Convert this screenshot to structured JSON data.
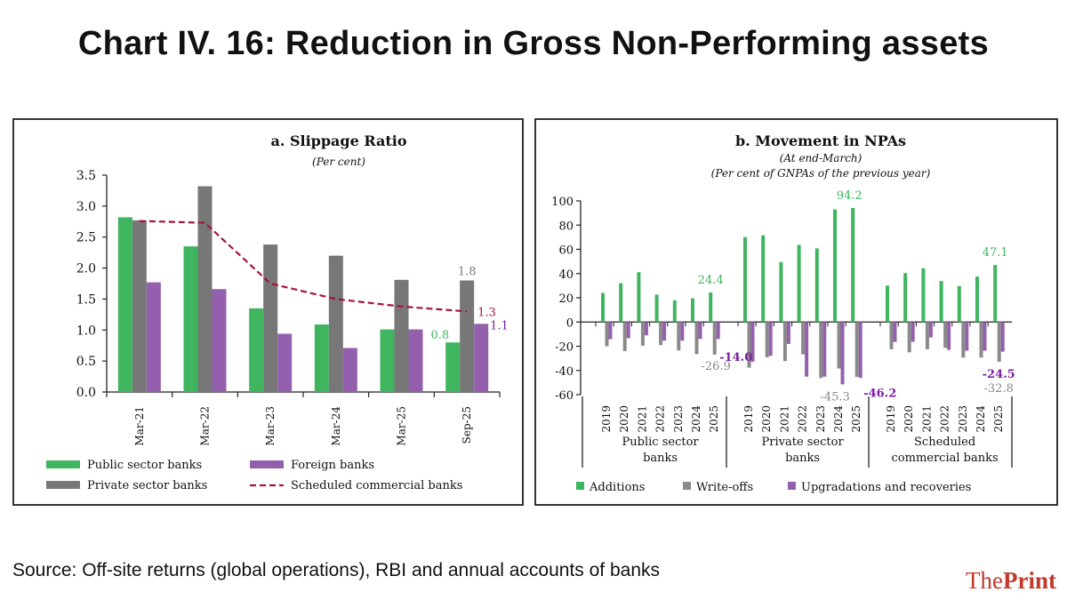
{
  "header": {
    "title": "Chart IV. 16: Reduction in Gross Non-Performing assets"
  },
  "footer": {
    "source": "Source: Off-site returns (global operations), RBI and annual accounts of banks",
    "brand_regular": "The",
    "brand_bold": "Print"
  },
  "colors": {
    "public": "#3fb55f",
    "private": "#777778",
    "foreign": "#9460ad",
    "scb_line": "#a3163a",
    "additions": "#3fb55f",
    "writeoffs": "#8a8a8a",
    "upgradations": "#9460ad",
    "label_purple": "#7b1fa2"
  },
  "chart_data": [
    {
      "type": "bar",
      "title": "a. Slippage Ratio",
      "subtitle": "(Per cent)",
      "xlabel": "",
      "ylabel": "",
      "ylim": [
        0,
        3.5
      ],
      "yticks": [
        "0.0",
        "0.5",
        "1.0",
        "1.5",
        "2.0",
        "2.5",
        "3.0",
        "3.5"
      ],
      "ytick_values": [
        0,
        0.5,
        1.0,
        1.5,
        2.0,
        2.5,
        3.0,
        3.5
      ],
      "categories": [
        "Mar-21",
        "Mar-22",
        "Mar-23",
        "Mar-24",
        "Mar-25",
        "Sep-25"
      ],
      "series": [
        {
          "name": "Public sector banks",
          "kind": "bar",
          "color_key": "public",
          "values": [
            2.82,
            2.35,
            1.35,
            1.09,
            1.01,
            0.8
          ]
        },
        {
          "name": "Private sector banks",
          "kind": "bar",
          "color_key": "private",
          "values": [
            2.77,
            3.32,
            2.38,
            2.2,
            1.81,
            1.8
          ]
        },
        {
          "name": "Foreign banks",
          "kind": "bar",
          "color_key": "foreign",
          "values": [
            1.77,
            1.66,
            0.94,
            0.71,
            1.01,
            1.1
          ]
        },
        {
          "name": "Scheduled commercial banks",
          "kind": "line-dashed",
          "color_key": "scb_line",
          "values": [
            2.76,
            2.73,
            1.75,
            1.5,
            1.38,
            1.3
          ]
        }
      ],
      "annotations": [
        {
          "text": "0.8",
          "series": "Public sector banks",
          "category": "Sep-25"
        },
        {
          "text": "1.8",
          "series": "Private sector banks",
          "category": "Sep-25"
        },
        {
          "text": "1.1",
          "series": "Foreign banks",
          "category": "Sep-25"
        },
        {
          "text": "1.3",
          "series": "Scheduled commercial banks",
          "category": "Sep-25"
        }
      ],
      "legend": {
        "placement": "bottom",
        "items": [
          "Public sector banks",
          "Foreign banks",
          "Private sector banks",
          "Scheduled commercial banks"
        ]
      },
      "grid": false
    },
    {
      "type": "bar",
      "title": "b. Movement in NPAs",
      "subtitle": "(At end-March)",
      "subtitle2": "(Per cent of GNPAs of the previous year)",
      "xlabel": "",
      "ylabel": "",
      "ylim": [
        -60,
        100
      ],
      "yticks": [
        "-60",
        "-40",
        "-20",
        "0",
        "20",
        "40",
        "60",
        "80",
        "100"
      ],
      "ytick_values": [
        -60,
        -40,
        -20,
        0,
        20,
        40,
        60,
        80,
        100
      ],
      "groups": [
        {
          "label_line1": "Public sector",
          "label_line2": "banks",
          "years": [
            "2019",
            "2020",
            "2021",
            "2022",
            "2023",
            "2024",
            "2025"
          ],
          "additions": [
            24.0,
            32.1,
            41.1,
            22.6,
            17.9,
            19.6,
            24.4
          ],
          "writeoffs": [
            -20.0,
            -24.0,
            -19.6,
            -19.1,
            -23.5,
            -26.5,
            -26.9
          ],
          "upgradations": [
            -14.2,
            -13.4,
            -11.0,
            -15.4,
            -15.4,
            -14.0,
            -14.0
          ]
        },
        {
          "label_line1": "Private sector",
          "label_line2": "banks",
          "years": [
            "2019",
            "2020",
            "2021",
            "2022",
            "2023",
            "2024",
            "2025"
          ],
          "additions": [
            70.1,
            71.6,
            49.5,
            63.7,
            60.8,
            93.0,
            94.2
          ],
          "writeoffs": [
            -37.7,
            -29.1,
            -32.3,
            -26.7,
            -46.3,
            -38.4,
            -45.3
          ],
          "upgradations": [
            -32.8,
            -27.9,
            -18.1,
            -45.1,
            -45.1,
            -51.5,
            -46.2
          ]
        },
        {
          "label_line1": "Scheduled",
          "label_line2": "commercial banks",
          "years": [
            "2019",
            "2020",
            "2021",
            "2022",
            "2023",
            "2024",
            "2025"
          ],
          "additions": [
            30.1,
            40.4,
            44.4,
            33.8,
            29.7,
            37.5,
            47.1
          ],
          "writeoffs": [
            -22.5,
            -25.0,
            -22.5,
            -21.3,
            -29.4,
            -29.4,
            -32.8
          ],
          "upgradations": [
            -16.4,
            -16.4,
            -12.7,
            -23.0,
            -23.7,
            -23.7,
            -24.5
          ]
        }
      ],
      "annotations": [
        {
          "text": "24.4",
          "group": 0,
          "series": "additions"
        },
        {
          "text": "-14.0",
          "group": 0,
          "series": "upgradations"
        },
        {
          "text": "-26.9",
          "group": 0,
          "series": "writeoffs"
        },
        {
          "text": "94.2",
          "group": 1,
          "series": "additions"
        },
        {
          "text": "-45.3",
          "group": 1,
          "series": "writeoffs"
        },
        {
          "text": "-46.2",
          "group": 1,
          "series": "upgradations"
        },
        {
          "text": "47.1",
          "group": 2,
          "series": "additions"
        },
        {
          "text": "-24.5",
          "group": 2,
          "series": "upgradations"
        },
        {
          "text": "-32.8",
          "group": 2,
          "series": "writeoffs"
        }
      ],
      "legend": {
        "placement": "bottom",
        "items": [
          "Additions",
          "Write-offs",
          "Upgradations and recoveries"
        ]
      },
      "grid": false
    }
  ]
}
